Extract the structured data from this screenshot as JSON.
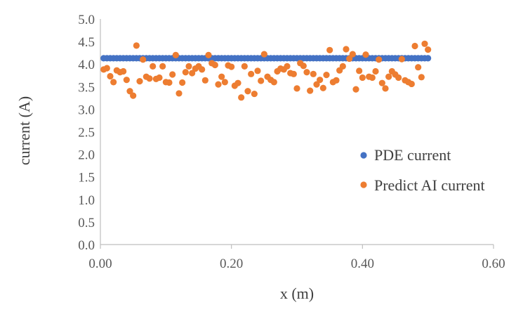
{
  "chart_data": {
    "type": "scatter",
    "title": "",
    "xlabel": "x (m)",
    "ylabel": "current (A)",
    "xlim": [
      0,
      0.6
    ],
    "ylim": [
      0,
      5
    ],
    "x_ticks": [
      "0.00",
      "0.20",
      "0.40",
      "0.60"
    ],
    "y_ticks": [
      "0.0",
      "0.5",
      "1.0",
      "1.5",
      "2.0",
      "2.5",
      "3.0",
      "3.5",
      "4.0",
      "4.5",
      "5.0"
    ],
    "grid": false,
    "legend_position": "right",
    "series": [
      {
        "name": "PDE current",
        "color": "#4472C4",
        "constant_y": 4.13,
        "x_range": [
          0.005,
          0.5
        ],
        "n_points": 100
      },
      {
        "name": "Predict AI current",
        "color": "#ED7D31",
        "points": [
          [
            0.005,
            3.88
          ],
          [
            0.01,
            3.91
          ],
          [
            0.015,
            3.73
          ],
          [
            0.02,
            3.6
          ],
          [
            0.025,
            3.86
          ],
          [
            0.03,
            3.82
          ],
          [
            0.035,
            3.84
          ],
          [
            0.04,
            3.65
          ],
          [
            0.045,
            3.4
          ],
          [
            0.05,
            3.3
          ],
          [
            0.055,
            4.41
          ],
          [
            0.06,
            3.62
          ],
          [
            0.065,
            4.1
          ],
          [
            0.07,
            3.72
          ],
          [
            0.075,
            3.68
          ],
          [
            0.08,
            3.95
          ],
          [
            0.085,
            3.67
          ],
          [
            0.09,
            3.7
          ],
          [
            0.095,
            3.95
          ],
          [
            0.1,
            3.6
          ],
          [
            0.105,
            3.59
          ],
          [
            0.11,
            3.77
          ],
          [
            0.115,
            4.2
          ],
          [
            0.12,
            3.35
          ],
          [
            0.125,
            3.59
          ],
          [
            0.13,
            3.82
          ],
          [
            0.135,
            3.95
          ],
          [
            0.14,
            3.8
          ],
          [
            0.145,
            3.9
          ],
          [
            0.15,
            3.95
          ],
          [
            0.155,
            3.88
          ],
          [
            0.16,
            3.64
          ],
          [
            0.165,
            4.2
          ],
          [
            0.17,
            4.02
          ],
          [
            0.175,
            3.98
          ],
          [
            0.18,
            3.55
          ],
          [
            0.185,
            3.72
          ],
          [
            0.19,
            3.6
          ],
          [
            0.195,
            3.97
          ],
          [
            0.2,
            3.94
          ],
          [
            0.205,
            3.52
          ],
          [
            0.21,
            3.58
          ],
          [
            0.215,
            3.26
          ],
          [
            0.22,
            3.95
          ],
          [
            0.225,
            3.4
          ],
          [
            0.23,
            3.78
          ],
          [
            0.235,
            3.34
          ],
          [
            0.24,
            3.85
          ],
          [
            0.245,
            3.63
          ],
          [
            0.25,
            4.22
          ],
          [
            0.255,
            3.72
          ],
          [
            0.26,
            3.65
          ],
          [
            0.265,
            3.6
          ],
          [
            0.27,
            3.84
          ],
          [
            0.275,
            3.9
          ],
          [
            0.28,
            3.88
          ],
          [
            0.285,
            3.95
          ],
          [
            0.29,
            3.8
          ],
          [
            0.295,
            3.78
          ],
          [
            0.3,
            3.46
          ],
          [
            0.305,
            4.02
          ],
          [
            0.31,
            3.96
          ],
          [
            0.315,
            3.82
          ],
          [
            0.32,
            3.41
          ],
          [
            0.325,
            3.78
          ],
          [
            0.33,
            3.55
          ],
          [
            0.335,
            3.65
          ],
          [
            0.34,
            3.47
          ],
          [
            0.345,
            3.76
          ],
          [
            0.35,
            4.31
          ],
          [
            0.355,
            3.6
          ],
          [
            0.36,
            3.64
          ],
          [
            0.365,
            3.86
          ],
          [
            0.37,
            3.95
          ],
          [
            0.375,
            4.33
          ],
          [
            0.38,
            4.12
          ],
          [
            0.385,
            4.22
          ],
          [
            0.39,
            3.44
          ],
          [
            0.395,
            3.85
          ],
          [
            0.4,
            3.7
          ],
          [
            0.405,
            4.21
          ],
          [
            0.41,
            3.72
          ],
          [
            0.415,
            3.7
          ],
          [
            0.42,
            3.84
          ],
          [
            0.425,
            4.1
          ],
          [
            0.43,
            3.58
          ],
          [
            0.435,
            3.46
          ],
          [
            0.44,
            3.72
          ],
          [
            0.445,
            3.84
          ],
          [
            0.45,
            3.77
          ],
          [
            0.455,
            3.7
          ],
          [
            0.46,
            4.11
          ],
          [
            0.465,
            3.64
          ],
          [
            0.47,
            3.6
          ],
          [
            0.475,
            3.56
          ],
          [
            0.48,
            4.4
          ],
          [
            0.485,
            3.93
          ],
          [
            0.49,
            3.71
          ],
          [
            0.495,
            4.45
          ],
          [
            0.5,
            4.32
          ]
        ]
      }
    ]
  }
}
